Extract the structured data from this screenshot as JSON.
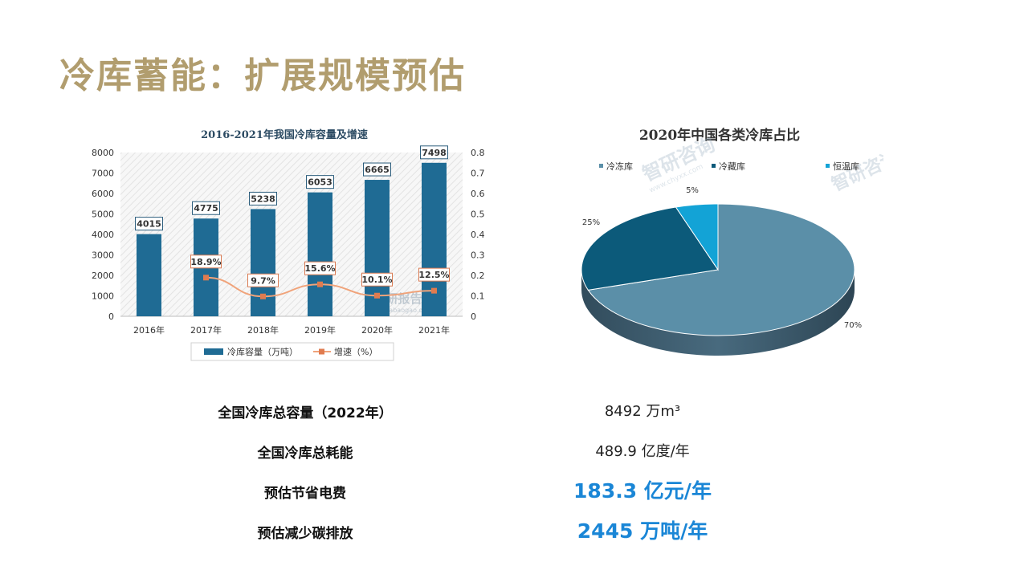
{
  "slide": {
    "title": "冷库蓄能：扩展规模预估"
  },
  "watermarks": {
    "bar": "观研报告网",
    "bar_sub": "chinabaogao.com",
    "pie": "智研咨询",
    "pie_sub": "www.chyxx.com"
  },
  "chart_data": [
    {
      "type": "bar",
      "title": "2016-2021年我国冷库容量及增速",
      "categories": [
        "2016年",
        "2017年",
        "2018年",
        "2019年",
        "2020年",
        "2021年"
      ],
      "series": [
        {
          "name": "冷库容量（万吨）",
          "type": "bar",
          "axis": "left",
          "values": [
            4015,
            4775,
            5238,
            6053,
            6665,
            7498
          ],
          "labels": [
            "4015",
            "4775",
            "5238",
            "6053",
            "6665",
            "7498"
          ]
        },
        {
          "name": "增速（%）",
          "type": "line",
          "axis": "right",
          "values": [
            null,
            0.189,
            0.097,
            0.156,
            0.101,
            0.125
          ],
          "labels": [
            "",
            "18.9%",
            "9.7%",
            "15.6%",
            "10.1%",
            "12.5%"
          ]
        }
      ],
      "ylim_left": [
        0,
        8000
      ],
      "yticks_left": [
        "0",
        "1000",
        "2000",
        "3000",
        "4000",
        "5000",
        "6000",
        "7000",
        "8000"
      ],
      "ylim_right": [
        0,
        0.8
      ],
      "yticks_right": [
        "0",
        "0.1",
        "0.2",
        "0.3",
        "0.4",
        "0.5",
        "0.6",
        "0.7",
        "0.8"
      ],
      "legend": "bottom",
      "colors": {
        "bar": "#1f6b94",
        "line": "#f0a37a",
        "marker": "#e07b4f"
      }
    },
    {
      "type": "pie",
      "title": "2020年中国各类冷库占比",
      "labels": [
        "冷冻库",
        "冷藏库",
        "恒温库"
      ],
      "values": [
        70,
        25,
        5
      ],
      "value_labels": [
        "70%",
        "25%",
        "5%"
      ],
      "legend": "top",
      "colors": [
        "#5b8fa8",
        "#0c5a7a",
        "#13a3d6"
      ]
    }
  ],
  "stats": [
    {
      "label": "全国冷库总容量（2022年）",
      "value": "8492 万m³",
      "highlight": false
    },
    {
      "label": "全国冷库总耗能",
      "value": "489.9 亿度/年",
      "highlight": false
    },
    {
      "label": "预估节省电费",
      "value": "183.3 亿元/年",
      "highlight": true
    },
    {
      "label": "预估减少碳排放",
      "value": "2445 万吨/年",
      "highlight": true
    }
  ],
  "colors": {
    "title": "#b19d6e",
    "highlight": "#1a86d6"
  }
}
